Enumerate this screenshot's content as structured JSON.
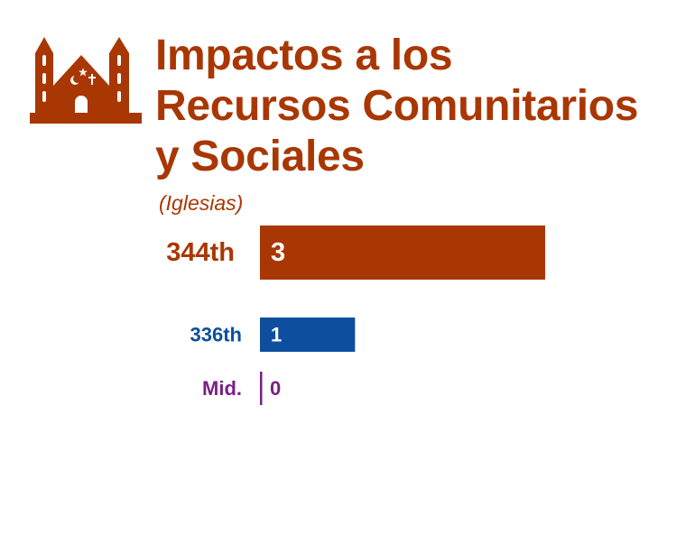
{
  "colors": {
    "accent": "#a93703",
    "blue": "#0d4f9e",
    "purple": "#7a1f86",
    "white": "#ffffff"
  },
  "header": {
    "icon": "church-building-icon",
    "title_lines": [
      "Impactos a los",
      "Recursos Comunitarios",
      "y Sociales"
    ],
    "subtitle": "(Iglesias)"
  },
  "chart_data": {
    "type": "bar",
    "orientation": "horizontal",
    "categories": [
      "344th",
      "336th",
      "Mid."
    ],
    "values": [
      3,
      1,
      0
    ],
    "colors": [
      "#a93703",
      "#0d4f9e",
      "#7a1f86"
    ],
    "data_labels": [
      "3",
      "1",
      "0"
    ],
    "xlim": [
      0,
      3
    ],
    "grid": false,
    "legend": "none"
  }
}
